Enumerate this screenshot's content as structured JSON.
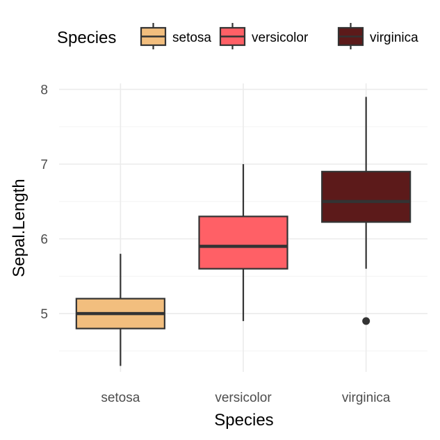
{
  "chart_data": {
    "type": "boxplot",
    "title": "",
    "xlabel": "Species",
    "ylabel": "Sepal.Length",
    "categories": [
      "setosa",
      "versicolor",
      "virginica"
    ],
    "ylim": [
      4.22,
      8.08
    ],
    "yticks": [
      5,
      6,
      7,
      8
    ],
    "grid": true,
    "legend": {
      "title": "Species",
      "position": "top",
      "entries": [
        "setosa",
        "versicolor",
        "virginica"
      ]
    },
    "colors": {
      "setosa": "#F2BE7E",
      "versicolor": "#FF6066",
      "virginica": "#5C1A1A",
      "line": "#333333"
    },
    "boxes": [
      {
        "name": "setosa",
        "min": 4.3,
        "q1": 4.8,
        "median": 5.0,
        "q3": 5.2,
        "max": 5.8,
        "outliers": []
      },
      {
        "name": "versicolor",
        "min": 4.9,
        "q1": 5.6,
        "median": 5.9,
        "q3": 6.3,
        "max": 7.0,
        "outliers": []
      },
      {
        "name": "virginica",
        "min": 5.6,
        "q1": 6.225,
        "median": 6.5,
        "q3": 6.9,
        "max": 7.9,
        "outliers": [
          4.9
        ]
      }
    ]
  }
}
